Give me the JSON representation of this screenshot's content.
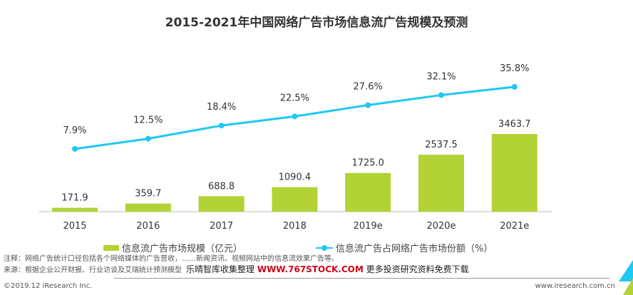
{
  "chart_data": {
    "type": "bar+line",
    "title": "2015-2021年中国网络广告市场信息流广告规模及预测",
    "categories": [
      "2015",
      "2016",
      "2017",
      "2018",
      "2019e",
      "2020e",
      "2021e"
    ],
    "series": [
      {
        "name": "信息流广告市场规模（亿元）",
        "type": "bar",
        "color": "#b2d235",
        "values": [
          171.9,
          359.7,
          688.8,
          1090.4,
          1725.0,
          2537.5,
          3463.7
        ],
        "labels": [
          "171.9",
          "359.7",
          "688.8",
          "1090.4",
          "1725.0",
          "2537.5",
          "3463.7"
        ]
      },
      {
        "name": "信息流广告占网络广告市场份额（%）",
        "type": "line",
        "color": "#1fc8f3",
        "values": [
          7.9,
          12.5,
          18.4,
          22.5,
          27.6,
          32.1,
          35.8
        ],
        "labels": [
          "7.9%",
          "12.5%",
          "18.4%",
          "22.5%",
          "27.6%",
          "32.1%",
          "35.8%"
        ]
      }
    ],
    "legend": "bottom"
  },
  "notes": {
    "note": "注释：网络广告统计口径包括各个网络媒体的广告营收，……新闻资讯、视频网站中的信息流效果广告等。",
    "source": "来源：根据企业公开财报、行业访谈及艾瑞统计预测模型"
  },
  "watermark": {
    "pre": "乐晴智库收集整理 ",
    "url": "WWW.767STOCK.COM",
    "post": " 更多投资研究资料免费下载"
  },
  "footer": {
    "copyright": "©2019.12 iResearch Inc.",
    "site": "www.iresearch.com.cn"
  }
}
